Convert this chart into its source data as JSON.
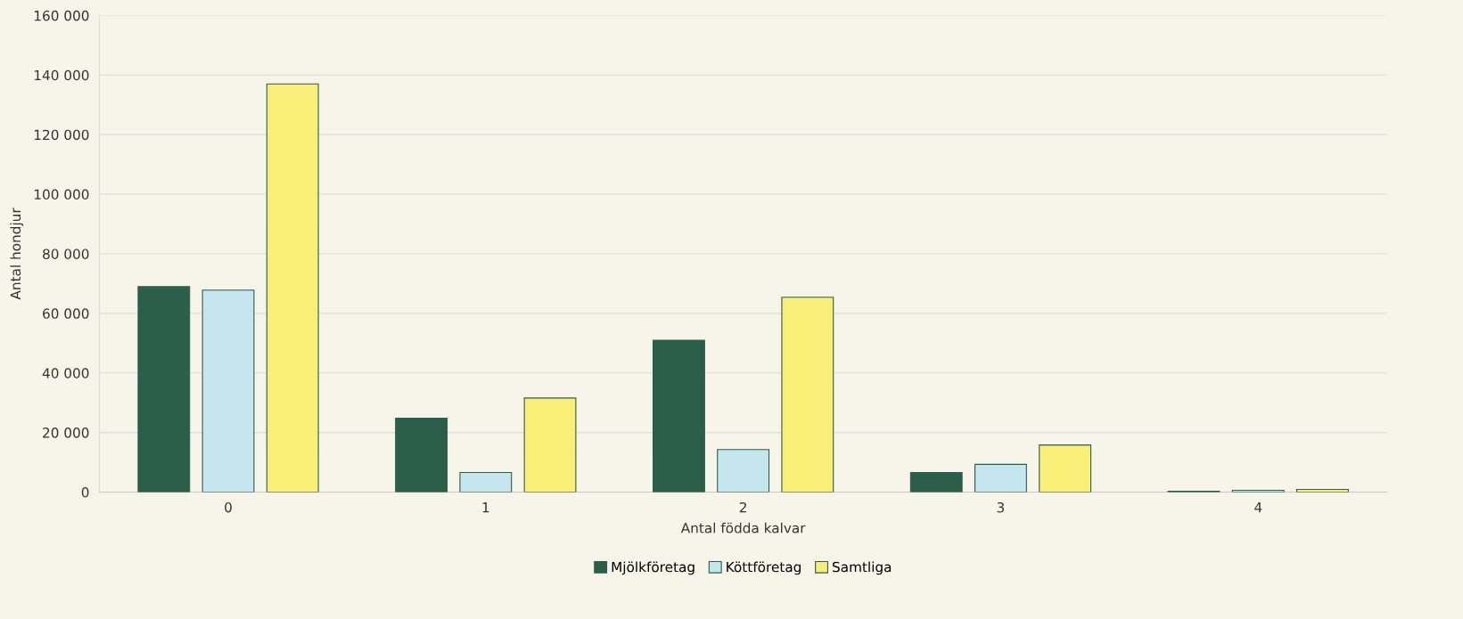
{
  "chart_data": {
    "type": "bar",
    "xlabel": "Antal födda kalvar",
    "ylabel": "Antal hondjur",
    "categories": [
      "0",
      "1",
      "2",
      "3",
      "4"
    ],
    "series": [
      {
        "name": "Mjölkföretag",
        "color": "#2b5f4b",
        "values": [
          69000,
          24800,
          51000,
          6600,
          300
        ]
      },
      {
        "name": "Köttföretag",
        "color": "#c5e6ee",
        "values": [
          67800,
          6600,
          14300,
          9300,
          600
        ]
      },
      {
        "name": "Samtliga",
        "color": "#f9ef78",
        "values": [
          137000,
          31600,
          65400,
          15800,
          900
        ]
      }
    ],
    "ylim": [
      0,
      160000
    ],
    "yticks": [
      0,
      {
        "value": 20000,
        "label": "20 000"
      },
      {
        "value": 40000,
        "label": "40 000"
      },
      {
        "value": 60000,
        "label": "60 000"
      },
      {
        "value": 80000,
        "label": "80 000"
      },
      {
        "value": 100000,
        "label": "100 000"
      },
      {
        "value": 120000,
        "label": "120 000"
      },
      {
        "value": 140000,
        "label": "140 000"
      },
      {
        "value": 160000,
        "label": "160 000"
      }
    ],
    "grid": "y",
    "legend": "bottom"
  }
}
